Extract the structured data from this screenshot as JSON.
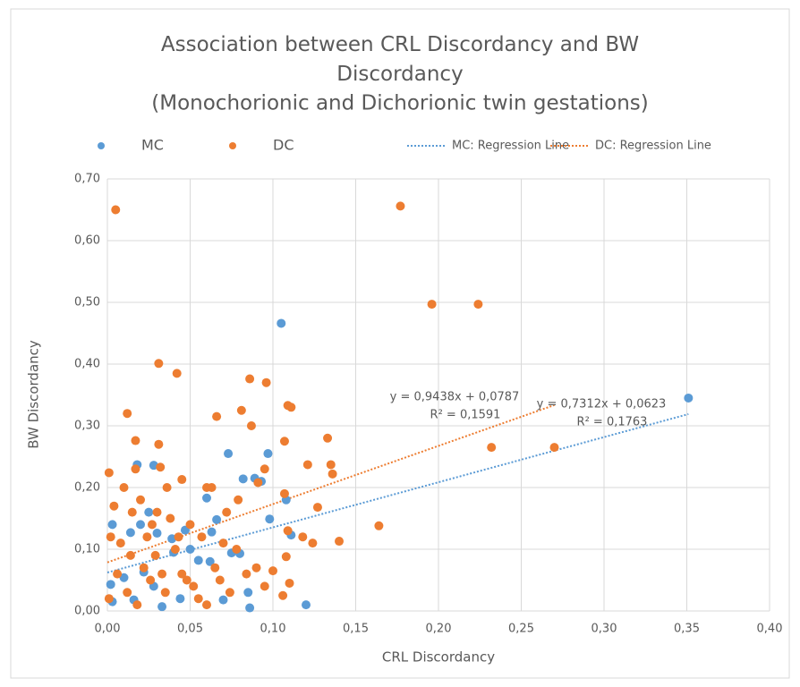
{
  "chart_data": {
    "type": "scatter",
    "title": "Association between CRL Discordancy and BW Discordancy",
    "subtitle": "(Monochorionic and Dichorionic twin gestations)",
    "x_label": "CRL Discordancy",
    "y_label": "BW Discordancy",
    "xlim": [
      0,
      0.4
    ],
    "ylim": [
      0,
      0.7
    ],
    "xticks": [
      {
        "value": 0,
        "label": "0,00"
      },
      {
        "value": 0.05,
        "label": "0,05"
      },
      {
        "value": 0.1,
        "label": "0,10"
      },
      {
        "value": 0.15,
        "label": "0,15"
      },
      {
        "value": 0.2,
        "label": "0,20"
      },
      {
        "value": 0.25,
        "label": "0,25"
      },
      {
        "value": 0.3,
        "label": "0,30"
      },
      {
        "value": 0.35,
        "label": "0,35"
      },
      {
        "value": 0.4,
        "label": "0,40"
      }
    ],
    "yticks": [
      {
        "value": 0,
        "label": "0,00"
      },
      {
        "value": 0.1,
        "label": "0,10"
      },
      {
        "value": 0.2,
        "label": "0,20"
      },
      {
        "value": 0.3,
        "label": "0,30"
      },
      {
        "value": 0.4,
        "label": "0,40"
      },
      {
        "value": 0.5,
        "label": "0,50"
      },
      {
        "value": 0.6,
        "label": "0,60"
      },
      {
        "value": 0.7,
        "label": "0,70"
      }
    ],
    "grid": true,
    "series": [
      {
        "name": "MC",
        "color": "#5b9bd5",
        "x": [
          0.351,
          0.105,
          0.097,
          0.073,
          0.018,
          0.028,
          0.082,
          0.089,
          0.06,
          0.098,
          0.111,
          0.003,
          0.014,
          0.03,
          0.047,
          0.063,
          0.039,
          0.08,
          0.055,
          0.022,
          0.01,
          0.002,
          0.028,
          0.044,
          0.07,
          0.085,
          0.12,
          0.086,
          0.016,
          0.033,
          0.003,
          0.062,
          0.093,
          0.108,
          0.075,
          0.02,
          0.05,
          0.025,
          0.066,
          0.04
        ],
        "values": [
          0.345,
          0.466,
          0.255,
          0.255,
          0.237,
          0.236,
          0.214,
          0.215,
          0.183,
          0.149,
          0.123,
          0.14,
          0.127,
          0.126,
          0.131,
          0.128,
          0.117,
          0.093,
          0.082,
          0.063,
          0.054,
          0.043,
          0.04,
          0.02,
          0.018,
          0.03,
          0.01,
          0.005,
          0.018,
          0.007,
          0.015,
          0.08,
          0.21,
          0.18,
          0.094,
          0.14,
          0.1,
          0.16,
          0.148,
          0.095
        ]
      },
      {
        "name": "DC",
        "color": "#ed7d31",
        "x": [
          0.005,
          0.177,
          0.196,
          0.224,
          0.031,
          0.042,
          0.086,
          0.096,
          0.109,
          0.111,
          0.012,
          0.066,
          0.081,
          0.087,
          0.133,
          0.107,
          0.017,
          0.031,
          0.232,
          0.27,
          0.135,
          0.121,
          0.136,
          0.001,
          0.017,
          0.032,
          0.045,
          0.091,
          0.095,
          0.107,
          0.06,
          0.063,
          0.127,
          0.164,
          0.14,
          0.124,
          0.109,
          0.108,
          0.106,
          0.118,
          0.01,
          0.02,
          0.03,
          0.038,
          0.05,
          0.057,
          0.07,
          0.078,
          0.09,
          0.004,
          0.008,
          0.014,
          0.022,
          0.026,
          0.035,
          0.045,
          0.052,
          0.06,
          0.068,
          0.074,
          0.084,
          0.095,
          0.001,
          0.006,
          0.012,
          0.018,
          0.024,
          0.029,
          0.036,
          0.041,
          0.048,
          0.055,
          0.002,
          0.015,
          0.027,
          0.033,
          0.043,
          0.065,
          0.079,
          0.1,
          0.11,
          0.072
        ],
        "values": [
          0.65,
          0.656,
          0.497,
          0.497,
          0.401,
          0.385,
          0.376,
          0.37,
          0.333,
          0.33,
          0.32,
          0.315,
          0.325,
          0.3,
          0.28,
          0.275,
          0.276,
          0.27,
          0.265,
          0.265,
          0.237,
          0.237,
          0.222,
          0.224,
          0.23,
          0.233,
          0.213,
          0.208,
          0.23,
          0.19,
          0.2,
          0.2,
          0.168,
          0.138,
          0.113,
          0.11,
          0.13,
          0.088,
          0.025,
          0.12,
          0.2,
          0.18,
          0.16,
          0.15,
          0.14,
          0.12,
          0.11,
          0.1,
          0.07,
          0.17,
          0.11,
          0.09,
          0.07,
          0.05,
          0.03,
          0.06,
          0.04,
          0.01,
          0.05,
          0.03,
          0.06,
          0.04,
          0.02,
          0.06,
          0.03,
          0.01,
          0.12,
          0.09,
          0.2,
          0.1,
          0.05,
          0.02,
          0.12,
          0.16,
          0.14,
          0.06,
          0.12,
          0.07,
          0.18,
          0.065,
          0.045,
          0.16
        ]
      }
    ],
    "trendlines": [
      {
        "name": "MC: Regression Line",
        "color": "#5b9bd5",
        "slope": 0.7312,
        "intercept": 0.0623,
        "x_range": [
          0,
          0.351
        ],
        "equation": "y = 0,7312x + 0,0623",
        "r_squared": "R² = 0,1763"
      },
      {
        "name": "DC: Regression Line",
        "color": "#ed7d31",
        "slope": 0.9438,
        "intercept": 0.0787,
        "x_range": [
          0,
          0.27
        ],
        "equation": "y = 0,9438x + 0,0787",
        "r_squared": "R² = 0,1591"
      }
    ]
  }
}
